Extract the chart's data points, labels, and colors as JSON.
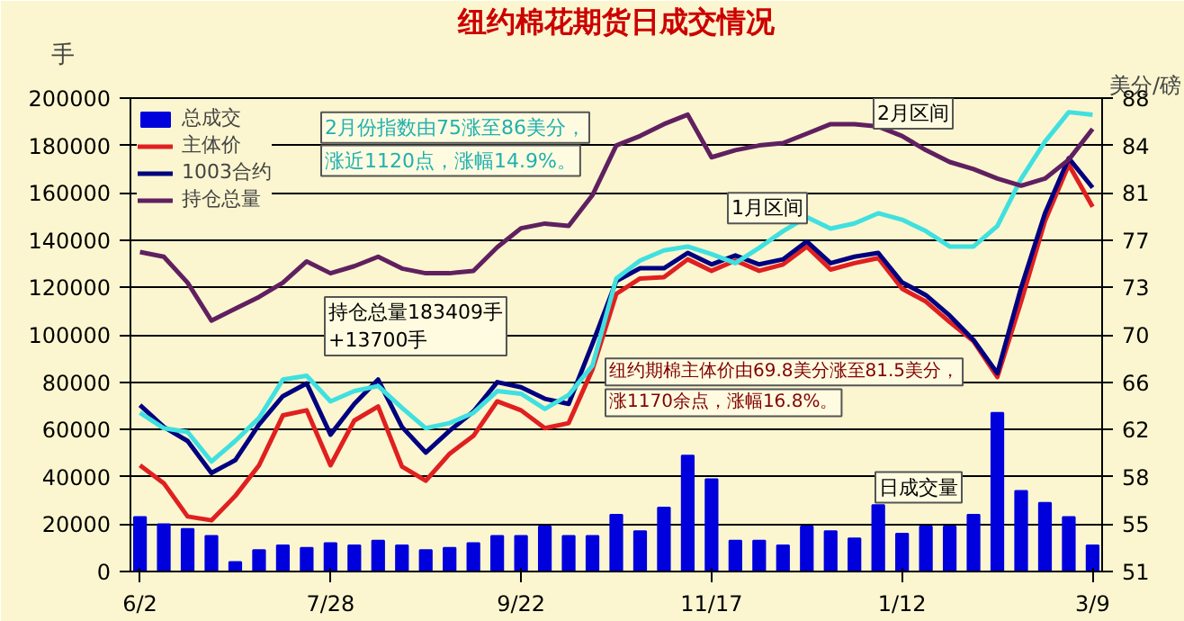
{
  "chart_data": {
    "type": "line",
    "title": "纽约棉花期货日成交情况",
    "ylabel": "手",
    "y2label": "美分/磅",
    "categories": [
      "6/2",
      null,
      null,
      null,
      null,
      null,
      null,
      null,
      "7/28",
      null,
      null,
      null,
      null,
      null,
      null,
      null,
      "9/22",
      null,
      null,
      null,
      null,
      null,
      null,
      null,
      "11/17",
      null,
      null,
      null,
      null,
      null,
      null,
      null,
      "1/12",
      null,
      null,
      null,
      null,
      null,
      null,
      null,
      "3/9"
    ],
    "ylim": [
      0,
      200000
    ],
    "yticks": [
      0,
      20000,
      40000,
      60000,
      80000,
      100000,
      120000,
      140000,
      160000,
      180000,
      200000
    ],
    "y2lim": [
      51,
      88
    ],
    "y2ticks": [
      {
        "value": 51,
        "label": "51"
      },
      {
        "value": 54.7,
        "label": "55"
      },
      {
        "value": 58.4,
        "label": "58"
      },
      {
        "value": 62.1,
        "label": "62"
      },
      {
        "value": 65.8,
        "label": "66"
      },
      {
        "value": 69.5,
        "label": "70"
      },
      {
        "value": 73.2,
        "label": "73"
      },
      {
        "value": 76.9,
        "label": "77"
      },
      {
        "value": 80.6,
        "label": "81"
      },
      {
        "value": 84.3,
        "label": "84"
      },
      {
        "value": 88,
        "label": "88"
      }
    ],
    "grid": "y",
    "legend": "top left",
    "series": [
      {
        "name": "总成交",
        "type": "bar",
        "color": "#0000dd",
        "values": [
          23000,
          20000,
          18000,
          15000,
          4000,
          9000,
          11000,
          10000,
          12000,
          11000,
          13000,
          11000,
          9000,
          10000,
          12000,
          15000,
          15000,
          19000,
          15000,
          15000,
          24000,
          17000,
          27000,
          49000,
          39000,
          13000,
          13000,
          11000,
          19000,
          17000,
          14000,
          28000,
          16000,
          19000,
          19000,
          24000,
          67000,
          34000,
          29000,
          23000,
          11000
        ]
      },
      {
        "name": "主体价",
        "axis": "y2",
        "color": "#e02020",
        "values": [
          59.3,
          57.9,
          55.3,
          55.0,
          56.9,
          59.3,
          63.2,
          63.6,
          59.3,
          62.8,
          63.9,
          59.2,
          58.1,
          60.2,
          61.6,
          64.3,
          63.6,
          62.2,
          62.6,
          66.8,
          72.7,
          73.9,
          74.0,
          75.4,
          74.5,
          75.3,
          74.5,
          75.0,
          76.4,
          74.6,
          75.1,
          75.5,
          73.1,
          72.1,
          70.5,
          69.0,
          66.2,
          72.1,
          78.4,
          82.8,
          79.5
        ]
      },
      {
        "name": "1003合约",
        "axis": "y2",
        "color": "#000080",
        "values": [
          64.0,
          62.3,
          61.2,
          58.7,
          59.7,
          62.5,
          64.7,
          65.7,
          61.7,
          64.1,
          66.0,
          62.3,
          60.3,
          62.0,
          63.5,
          65.8,
          65.4,
          64.5,
          64.1,
          68.8,
          73.7,
          74.7,
          74.7,
          75.9,
          75.0,
          75.7,
          75.0,
          75.4,
          76.8,
          75.1,
          75.6,
          75.9,
          73.6,
          72.6,
          71.0,
          69.1,
          66.5,
          73.2,
          79.0,
          83.3,
          81.0
        ]
      },
      {
        "axis": "y2",
        "color": "#40e0e0",
        "values": [
          63.4,
          62.2,
          61.9,
          59.6,
          61.2,
          63.0,
          66.0,
          66.3,
          64.3,
          65.1,
          65.5,
          63.8,
          62.2,
          62.6,
          63.4,
          65.1,
          64.9,
          63.7,
          64.8,
          67.1,
          73.9,
          75.3,
          76.1,
          76.4,
          75.8,
          75.1,
          76.3,
          77.6,
          78.7,
          77.8,
          78.2,
          79.0,
          78.5,
          77.6,
          76.4,
          76.4,
          78.0,
          81.7,
          84.6,
          86.9,
          86.7
        ]
      },
      {
        "name": "持仓总量",
        "color": "#602060",
        "values": [
          135000,
          133000,
          122000,
          106000,
          111000,
          116000,
          122000,
          131000,
          126000,
          129000,
          133000,
          128000,
          126000,
          126000,
          127000,
          137000,
          145000,
          147000,
          146000,
          159000,
          180000,
          184000,
          189000,
          193000,
          175000,
          178000,
          180000,
          181000,
          185000,
          189000,
          189000,
          188000,
          184000,
          178000,
          173000,
          170000,
          166000,
          163000,
          166000,
          174000,
          187000
        ]
      }
    ],
    "annotations": [
      "2月份指数由75涨至86美分，",
      "涨近1120点，涨幅14.9%。",
      "2月区间",
      "1月区间",
      "持仓总量183409手\n+13700手",
      "纽约期棉主体价由69.8美分涨至81.5美分，",
      "涨1170余点，涨幅16.8%。",
      "日成交量"
    ]
  }
}
